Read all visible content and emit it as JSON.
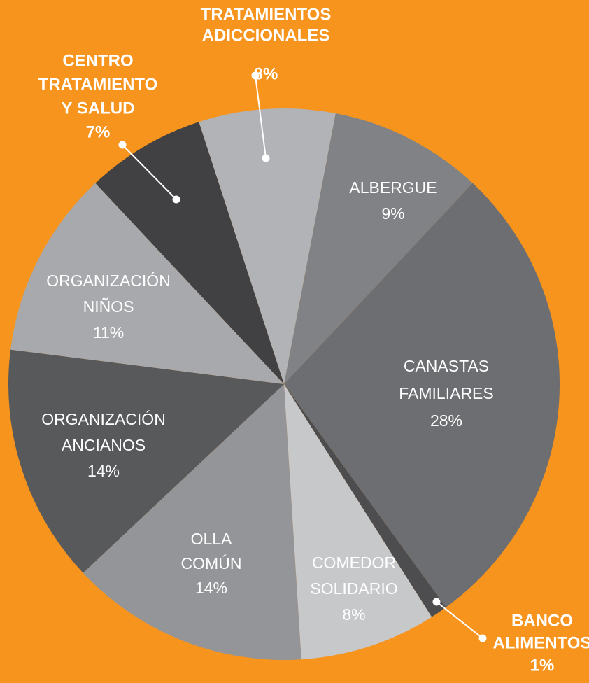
{
  "chart_data": {
    "type": "pie",
    "categories": [
      [
        "TRATAMIENTOS",
        "ADICCIONALES"
      ],
      [
        "ALBERGUE"
      ],
      [
        "CANASTAS",
        "FAMILIARES"
      ],
      [
        "BANCO",
        "ALIMENTOS"
      ],
      [
        "COMEDOR",
        "SOLIDARIO"
      ],
      [
        "OLLA",
        "COMÚN"
      ],
      [
        "ORGANIZACIÓN",
        "ANCIANOS"
      ],
      [
        "ORGANIZACIÓN",
        "NIÑOS"
      ],
      [
        "CENTRO",
        "TRATAMIENTO",
        "Y SALUD"
      ]
    ],
    "values": [
      8,
      9,
      28,
      1,
      8,
      14,
      14,
      11,
      7
    ],
    "value_labels": [
      "8%",
      "9%",
      "28%",
      "1%",
      "8%",
      "14%",
      "14%",
      "11%",
      "7%"
    ],
    "colors": [
      "#b1b3b6",
      "#808285",
      "#6d6e71",
      "#4d4d4f",
      "#c7c8ca",
      "#939598",
      "#58595b",
      "#a7a9ac",
      "#414042"
    ]
  }
}
